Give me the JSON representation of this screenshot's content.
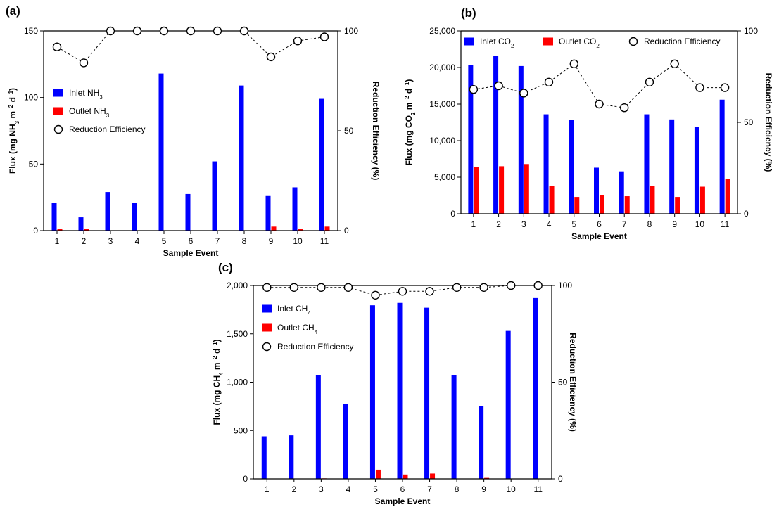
{
  "chart_data": [
    {
      "type": "bar",
      "panel_label": "(a)",
      "categories": [
        "1",
        "2",
        "3",
        "4",
        "5",
        "6",
        "7",
        "8",
        "9",
        "10",
        "11"
      ],
      "series": [
        {
          "name": "Inlet NH",
          "sub": "3",
          "color": "#0000ff",
          "values": [
            21,
            10,
            29,
            21,
            118,
            27.5,
            52,
            109,
            26,
            32.5,
            99
          ]
        },
        {
          "name": "Outlet NH",
          "sub": "3",
          "color": "#ff0000",
          "values": [
            1.5,
            1.5,
            0,
            0,
            0,
            0,
            0,
            0,
            3,
            1.5,
            3
          ]
        }
      ],
      "efficiency": {
        "name": "Reduction Efficiency",
        "values": [
          92,
          84,
          100,
          100,
          100,
          100,
          100,
          100,
          87,
          95,
          97
        ]
      },
      "xlabel": "Sample Event",
      "ylabel_parts": [
        {
          "t": "Flux (mg NH"
        },
        {
          "t": "3",
          "s": "sub"
        },
        {
          "t": " m"
        },
        {
          "t": "−2",
          "s": "sup"
        },
        {
          "t": " d"
        },
        {
          "t": "−1",
          "s": "sup"
        },
        {
          "t": ")"
        }
      ],
      "y2label": "Reduction Efficiency (%)",
      "ylim": [
        0,
        150
      ],
      "yticks": [
        0,
        50,
        100,
        150
      ],
      "ytick_labels": [
        "0",
        "50",
        "100",
        "150"
      ],
      "y2lim": [
        0,
        100
      ],
      "y2ticks": [
        0,
        50,
        100
      ],
      "y2tick_labels": [
        "0",
        "50",
        "100"
      ],
      "legend_position": "left-middle"
    },
    {
      "type": "bar",
      "panel_label": "(b)",
      "categories": [
        "1",
        "2",
        "3",
        "4",
        "5",
        "6",
        "7",
        "8",
        "9",
        "10",
        "11"
      ],
      "series": [
        {
          "name": "Inlet CO",
          "sub": "2",
          "color": "#0000ff",
          "values": [
            20300,
            21600,
            20200,
            13600,
            12800,
            6300,
            5800,
            13600,
            12900,
            11900,
            15600
          ]
        },
        {
          "name": "Outlet CO",
          "sub": "2",
          "color": "#ff0000",
          "values": [
            6400,
            6500,
            6800,
            3800,
            2300,
            2500,
            2400,
            3800,
            2300,
            3700,
            4800
          ]
        }
      ],
      "efficiency": {
        "name": "Reduction Efficiency",
        "values": [
          68,
          70,
          66,
          72,
          82,
          60,
          58,
          72,
          82,
          69,
          69
        ]
      },
      "xlabel": "Sample Event",
      "ylabel_parts": [
        {
          "t": "Flux (mg CO"
        },
        {
          "t": "2",
          "s": "sub"
        },
        {
          "t": " m"
        },
        {
          "t": "−2",
          "s": "sup"
        },
        {
          "t": " d"
        },
        {
          "t": "−1",
          "s": "sup"
        },
        {
          "t": ")"
        }
      ],
      "y2label": "Reduction Efficiency (%)",
      "ylim": [
        0,
        25000
      ],
      "yticks": [
        0,
        5000,
        10000,
        15000,
        20000,
        25000
      ],
      "ytick_labels": [
        "0",
        "5,000",
        "10,000",
        "15,000",
        "20,000",
        "25,000"
      ],
      "y2lim": [
        0,
        100
      ],
      "y2ticks": [
        0,
        50,
        100
      ],
      "y2tick_labels": [
        "0",
        "50",
        "100"
      ],
      "legend_position": "top"
    },
    {
      "type": "bar",
      "panel_label": "(c)",
      "categories": [
        "1",
        "2",
        "3",
        "4",
        "5",
        "6",
        "7",
        "8",
        "9",
        "10",
        "11"
      ],
      "series": [
        {
          "name": "Inlet CH",
          "sub": "4",
          "color": "#0000ff",
          "values": [
            440,
            450,
            1070,
            775,
            1795,
            1820,
            1770,
            1070,
            750,
            1530,
            1870
          ]
        },
        {
          "name": "Outlet CH",
          "sub": "4",
          "color": "#ff0000",
          "values": [
            0,
            0,
            5,
            0,
            95,
            45,
            55,
            0,
            10,
            0,
            0
          ]
        }
      ],
      "efficiency": {
        "name": "Reduction Efficiency",
        "values": [
          99,
          99,
          99,
          99,
          95,
          97,
          97,
          99,
          99,
          100,
          100
        ]
      },
      "xlabel": "Sample Event",
      "ylabel_parts": [
        {
          "t": "Flux (mg CH"
        },
        {
          "t": "4",
          "s": "sub"
        },
        {
          "t": " m"
        },
        {
          "t": "−2",
          "s": "sup"
        },
        {
          "t": " d"
        },
        {
          "t": "−1",
          "s": "sup"
        },
        {
          "t": ")"
        }
      ],
      "y2label": "Reduction Efficiency (%)",
      "ylim": [
        0,
        2000
      ],
      "yticks": [
        0,
        500,
        1000,
        1500,
        2000
      ],
      "ytick_labels": [
        "0",
        "500",
        "1,000",
        "1,500",
        "2,000"
      ],
      "y2lim": [
        0,
        100
      ],
      "y2ticks": [
        0,
        50,
        100
      ],
      "y2tick_labels": [
        "0",
        "50",
        "100"
      ],
      "legend_position": "left-top"
    }
  ]
}
